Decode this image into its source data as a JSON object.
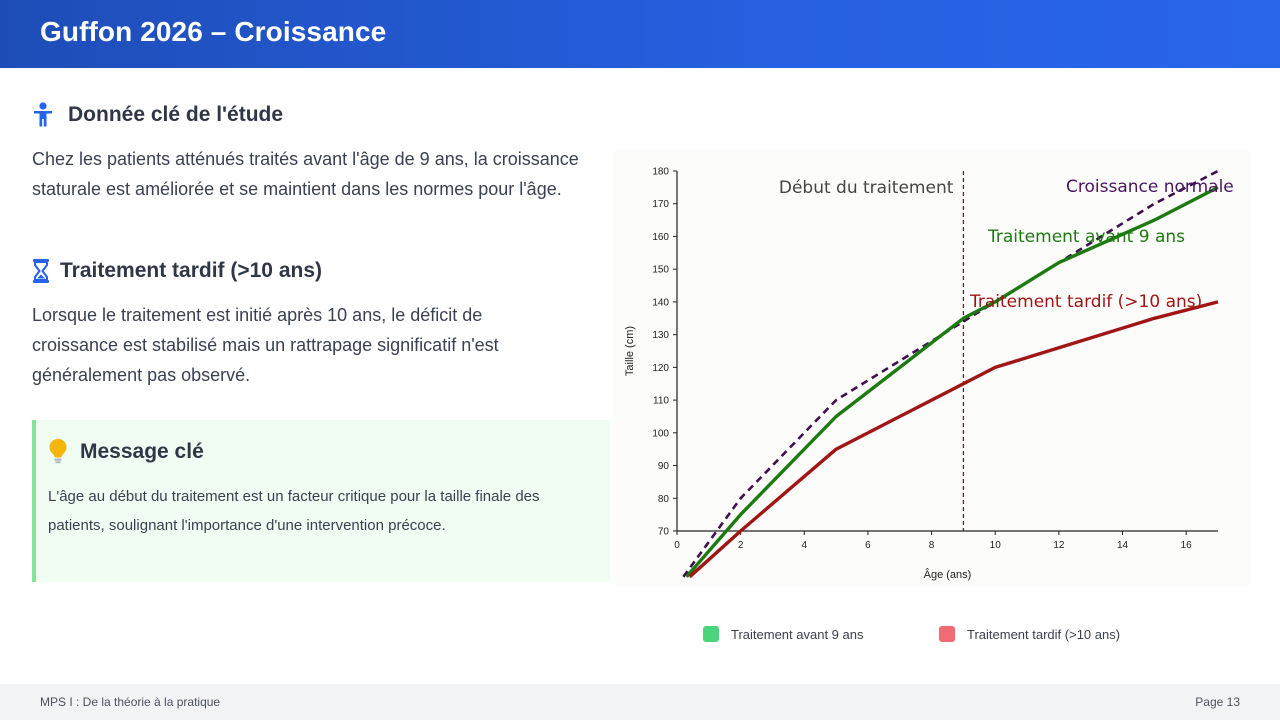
{
  "header": {
    "title": "Guffon 2026 – Croissance"
  },
  "section1": {
    "icon": "child-icon",
    "title": "Donnée clé de l'étude",
    "lines": [
      "Chez les patients atténués traités avant l'âge de 9 ans, la croissance",
      "staturale est améliorée et se maintient dans les normes pour l'âge."
    ]
  },
  "section2": {
    "icon": "hourglass-icon",
    "title": "Traitement tardif (>10 ans)",
    "lines": [
      "Lorsque le traitement est initié après 10 ans, le déficit de",
      "croissance est stabilisé mais un rattrapage significatif n'est",
      "généralement pas observé."
    ]
  },
  "keybox": {
    "icon": "lightbulb-icon",
    "title": "Message clé",
    "lines": [
      "L'âge au début du traitement est un facteur critique pour la taille finale des",
      "patients, soulignant l'importance d'une intervention précoce."
    ]
  },
  "chart_data": {
    "type": "line",
    "xlabel": "Âge (ans)",
    "ylabel": "Taille (cm)",
    "xlim": [
      0,
      17
    ],
    "ylim": [
      70,
      180
    ],
    "xticks": [
      0,
      2,
      4,
      6,
      8,
      10,
      12,
      14,
      16
    ],
    "yticks": [
      70,
      80,
      90,
      100,
      110,
      120,
      130,
      140,
      150,
      160,
      170,
      180
    ],
    "grid": false,
    "vline": {
      "x": 9,
      "label": "Début du traitement"
    },
    "series": [
      {
        "name": "Croissance normale",
        "style": "dashed",
        "color": "#3f0f4f",
        "x": [
          0.2,
          2,
          5,
          8,
          9,
          12,
          15,
          17
        ],
        "y": [
          56,
          80,
          110,
          128,
          134,
          152,
          170,
          180
        ]
      },
      {
        "name": "Traitement avant 9 ans",
        "style": "solid",
        "color": "#1c7a10",
        "x": [
          0.3,
          2,
          5,
          9,
          10,
          12,
          15,
          17
        ],
        "y": [
          56,
          75,
          105,
          135,
          140,
          152,
          165,
          175
        ]
      },
      {
        "name": "Traitement tardif (>10 ans)",
        "style": "solid",
        "color": "#a01515",
        "x": [
          0.4,
          2,
          5,
          8,
          10,
          12,
          15,
          17
        ],
        "y": [
          56,
          70,
          95,
          110,
          120,
          126,
          135,
          140
        ]
      }
    ]
  },
  "legend": [
    {
      "label": "Traitement avant 9 ans",
      "color": "#4ad47b"
    },
    {
      "label": "Traitement tardif (>10 ans)",
      "color": "#f06b73"
    }
  ],
  "footer": {
    "left": "MPS I : De la théorie à la pratique",
    "right": "Page 13"
  }
}
